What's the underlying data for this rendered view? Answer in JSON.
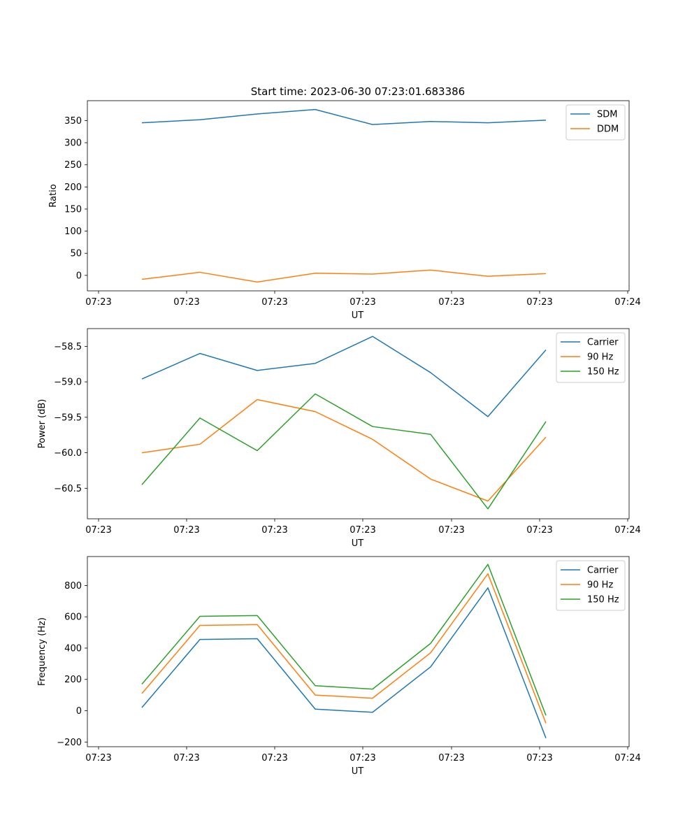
{
  "title": "Start time: 2023-06-30 07:23:01.683386",
  "colors": {
    "blue": "#1f77b4",
    "orange": "#ff7f0e",
    "green": "#2ca02c"
  },
  "chart_data": [
    {
      "type": "line",
      "xlabel": "UT",
      "ylabel": "Ratio",
      "x_tick_labels": [
        "07:23",
        "07:23",
        "07:23",
        "07:23",
        "07:23",
        "07:23",
        "07:24"
      ],
      "ylim": [
        -35,
        395
      ],
      "yticks": [
        0,
        50,
        100,
        150,
        200,
        250,
        300,
        350
      ],
      "legend": "top-right",
      "series": [
        {
          "name": "SDM",
          "color": "#1f77b4",
          "values": [
            345,
            352,
            365,
            375,
            341,
            348,
            345,
            351
          ]
        },
        {
          "name": "DDM",
          "color": "#ff7f0e",
          "values": [
            -9,
            7,
            -15,
            5,
            3,
            12,
            -2,
            4
          ]
        }
      ]
    },
    {
      "type": "line",
      "xlabel": "UT",
      "ylabel": "Power (dB)",
      "x_tick_labels": [
        "07:23",
        "07:23",
        "07:23",
        "07:23",
        "07:23",
        "07:23",
        "07:24"
      ],
      "ylim": [
        -60.93,
        -58.25
      ],
      "yticks": [
        -60.5,
        -60.0,
        -59.5,
        -59.0,
        -58.5
      ],
      "ytick_labels": [
        "−60.5",
        "−60.0",
        "−59.5",
        "−59.0",
        "−58.5"
      ],
      "legend": "top-right",
      "series": [
        {
          "name": "Carrier",
          "color": "#1f77b4",
          "values": [
            -58.96,
            -58.6,
            -58.84,
            -58.74,
            -58.36,
            -58.87,
            -59.49,
            -58.55
          ]
        },
        {
          "name": "90 Hz",
          "color": "#ff7f0e",
          "values": [
            -60.0,
            -59.88,
            -59.25,
            -59.42,
            -59.81,
            -60.37,
            -60.68,
            -59.78
          ]
        },
        {
          "name": "150 Hz",
          "color": "#2ca02c",
          "values": [
            -60.45,
            -59.51,
            -59.97,
            -59.17,
            -59.63,
            -59.74,
            -60.79,
            -59.56
          ]
        }
      ]
    },
    {
      "type": "line",
      "xlabel": "UT",
      "ylabel": "Frequency (Hz)",
      "x_tick_labels": [
        "07:23",
        "07:23",
        "07:23",
        "07:23",
        "07:23",
        "07:23",
        "07:24"
      ],
      "ylim": [
        -230,
        985
      ],
      "yticks": [
        -200,
        0,
        200,
        400,
        600,
        800
      ],
      "ytick_labels": [
        "−200",
        "0",
        "200",
        "400",
        "600",
        "800"
      ],
      "legend": "top-right",
      "series": [
        {
          "name": "Carrier",
          "color": "#1f77b4",
          "values": [
            20,
            455,
            460,
            10,
            -10,
            280,
            785,
            -175
          ]
        },
        {
          "name": "90 Hz",
          "color": "#ff7f0e",
          "values": [
            110,
            545,
            550,
            100,
            80,
            370,
            875,
            -80
          ]
        },
        {
          "name": "150 Hz",
          "color": "#2ca02c",
          "values": [
            170,
            603,
            608,
            160,
            138,
            430,
            935,
            -30
          ]
        }
      ]
    }
  ]
}
